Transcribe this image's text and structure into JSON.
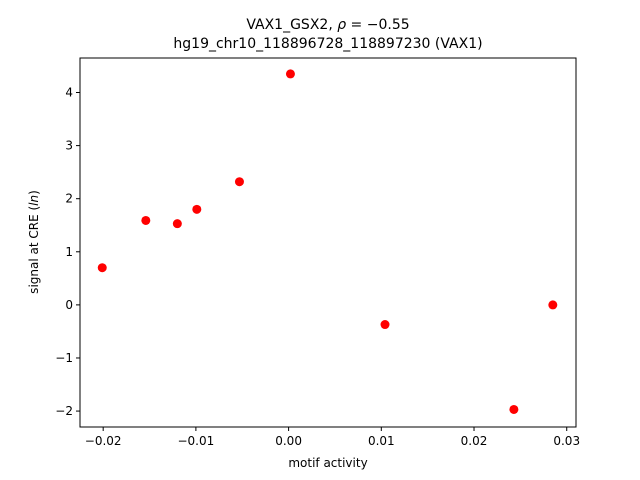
{
  "chart_data": {
    "type": "scatter",
    "title_line1_prefix": "VAX1_GSX2, ",
    "title_line1_rho_symbol": "ρ",
    "title_line1_rho_value": " = −0.55",
    "title_line2": "hg19_chr10_118896728_118897230 (VAX1)",
    "xlabel": "motif activity",
    "ylabel_prefix": "signal at CRE (",
    "ylabel_italic": "ln",
    "ylabel_suffix": ")",
    "xlim": [
      -0.0225,
      0.031
    ],
    "ylim": [
      -2.3,
      4.65
    ],
    "xticks": [
      -0.02,
      -0.01,
      0.0,
      0.01,
      0.02,
      0.03
    ],
    "xtick_labels": [
      "−0.02",
      "−0.01",
      "0.00",
      "0.01",
      "0.02",
      "0.03"
    ],
    "yticks": [
      -2,
      -1,
      0,
      1,
      2,
      3,
      4
    ],
    "ytick_labels": [
      "−2",
      "−1",
      "0",
      "1",
      "2",
      "3",
      "4"
    ],
    "grid": false,
    "color": "#ff0000",
    "points": [
      {
        "x": -0.0201,
        "y": 0.7
      },
      {
        "x": -0.0154,
        "y": 1.59
      },
      {
        "x": -0.012,
        "y": 1.53
      },
      {
        "x": -0.0099,
        "y": 1.8
      },
      {
        "x": -0.0053,
        "y": 2.32
      },
      {
        "x": 0.0002,
        "y": 4.35
      },
      {
        "x": 0.0104,
        "y": -0.37
      },
      {
        "x": 0.0243,
        "y": -1.97
      },
      {
        "x": 0.0285,
        "y": 0.0
      }
    ]
  }
}
